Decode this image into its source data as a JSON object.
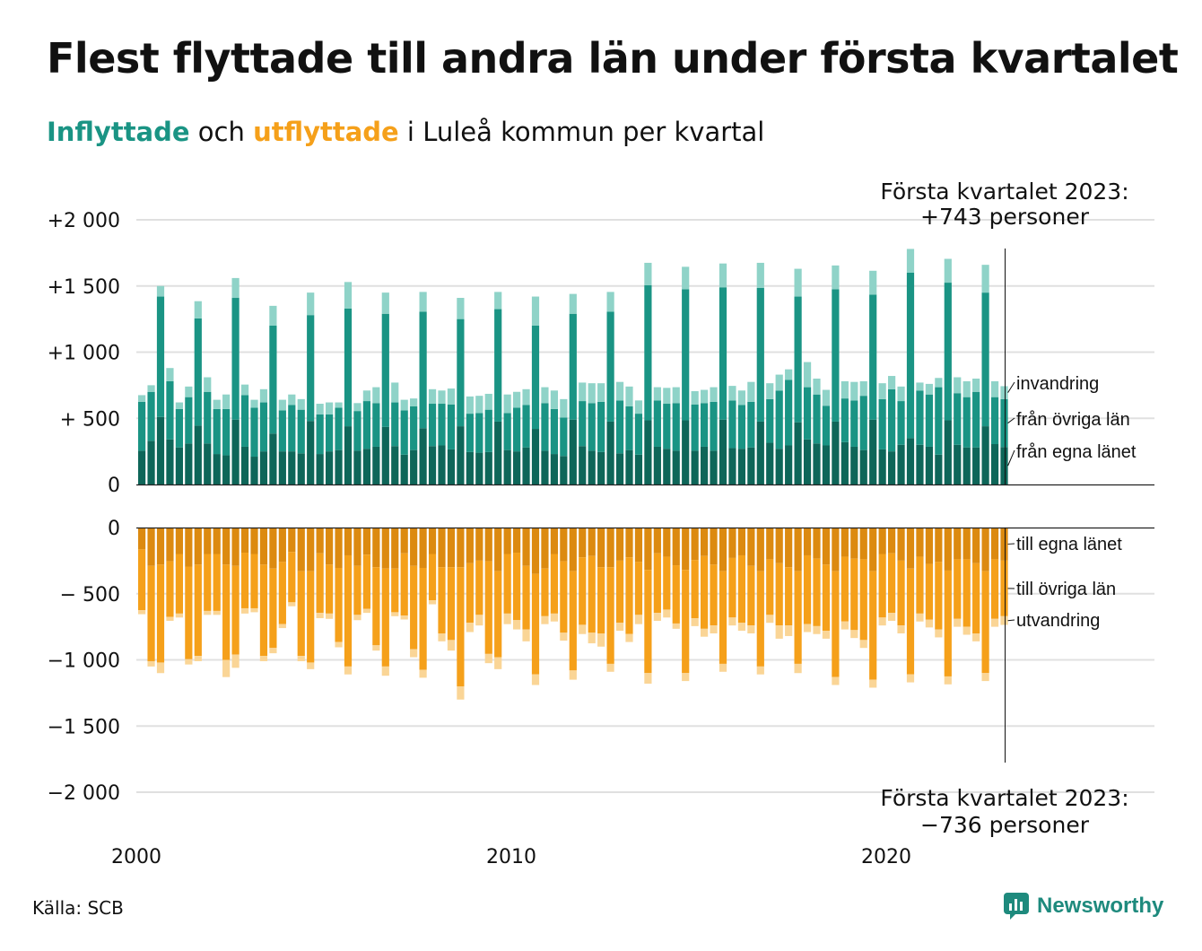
{
  "title": "Flest flyttade till andra län under första kvartalet",
  "subtitle": {
    "in_word": "Inflyttade",
    "mid1": " och ",
    "out_word": "utflyttade",
    "rest": " i Luleå kommun per kvartal"
  },
  "annotations": {
    "top_line1": "Första kvartalet 2023:",
    "top_line2": "+743 personer",
    "bottom_line1": "Första kvartalet 2023:",
    "bottom_line2": "−736 personer"
  },
  "source": "Källa: SCB",
  "brand": "Newsworthy",
  "colors": {
    "in_own": "#0e6659",
    "in_other": "#1a9484",
    "in_imm": "#8fd3c8",
    "out_own": "#dc8a10",
    "out_other": "#f5a01a",
    "out_emig": "#fad596",
    "grid": "#e0e0e0",
    "axis": "#222222"
  },
  "chart_data": {
    "type": "bar",
    "stacked": true,
    "x_start": 2000,
    "x_ticks": [
      2000,
      2010,
      2020
    ],
    "x_tick_labels": [
      "2000",
      "2010",
      "2020"
    ],
    "top_panel": {
      "ylim": [
        0,
        2000
      ],
      "y_ticks": [
        0,
        500,
        1000,
        1500,
        2000
      ],
      "y_tick_labels": [
        "0",
        "+  500",
        "+1 000",
        "+1 500",
        "+2 000"
      ],
      "series": [
        {
          "name": "från egna länet",
          "values": [
            255,
            330,
            510,
            340,
            280,
            310,
            445,
            310,
            230,
            220,
            490,
            285,
            210,
            250,
            385,
            250,
            250,
            235,
            480,
            230,
            250,
            260,
            440,
            255,
            270,
            285,
            435,
            290,
            225,
            260,
            425,
            290,
            295,
            265,
            440,
            245,
            240,
            245,
            475,
            260,
            250,
            280,
            420,
            255,
            230,
            215,
            490,
            290,
            255,
            245,
            475,
            235,
            260,
            225,
            485,
            285,
            270,
            255,
            485,
            255,
            285,
            255,
            490,
            275,
            270,
            280,
            475,
            315,
            270,
            295,
            470,
            340,
            310,
            295,
            475,
            320,
            285,
            260,
            490,
            265,
            250,
            300,
            350,
            300,
            285,
            225,
            485,
            300,
            280,
            280,
            440,
            305,
            283
          ]
        },
        {
          "name": "från övriga län",
          "values": [
            370,
            370,
            910,
            440,
            290,
            350,
            810,
            390,
            340,
            350,
            920,
            390,
            370,
            370,
            815,
            310,
            350,
            330,
            800,
            300,
            280,
            320,
            890,
            300,
            360,
            330,
            855,
            330,
            335,
            330,
            880,
            320,
            315,
            340,
            810,
            290,
            300,
            320,
            850,
            280,
            330,
            320,
            780,
            360,
            340,
            290,
            800,
            340,
            360,
            380,
            830,
            400,
            330,
            310,
            1020,
            350,
            340,
            360,
            990,
            350,
            330,
            370,
            1000,
            360,
            330,
            345,
            1010,
            330,
            440,
            495,
            950,
            395,
            370,
            300,
            1000,
            330,
            350,
            410,
            945,
            380,
            470,
            330,
            1250,
            410,
            395,
            510,
            1040,
            390,
            380,
            420,
            1010,
            355,
            362
          ]
        },
        {
          "name": "invandring",
          "values": [
            50,
            50,
            80,
            100,
            50,
            80,
            130,
            110,
            70,
            110,
            150,
            80,
            60,
            100,
            150,
            80,
            80,
            80,
            170,
            80,
            90,
            40,
            200,
            60,
            80,
            120,
            160,
            150,
            80,
            60,
            150,
            110,
            100,
            120,
            160,
            130,
            130,
            120,
            130,
            140,
            120,
            120,
            220,
            120,
            140,
            140,
            150,
            140,
            150,
            140,
            150,
            140,
            150,
            100,
            170,
            100,
            120,
            120,
            170,
            100,
            100,
            110,
            180,
            110,
            110,
            150,
            190,
            120,
            120,
            80,
            210,
            190,
            120,
            120,
            180,
            130,
            140,
            110,
            180,
            120,
            100,
            110,
            180,
            60,
            80,
            70,
            180,
            120,
            120,
            100,
            210,
            120,
            98
          ]
        }
      ]
    },
    "bottom_panel": {
      "ylim": [
        -2000,
        0
      ],
      "y_ticks": [
        0,
        -500,
        -1000,
        -1500,
        -2000
      ],
      "y_tick_labels": [
        "0",
        "−  500",
        "−1 000",
        "−1 500",
        "−2 000"
      ],
      "series": [
        {
          "name": "till egna länet",
          "values": [
            -165,
            -290,
            -280,
            -255,
            -200,
            -295,
            -280,
            -200,
            -200,
            -280,
            -290,
            -190,
            -200,
            -280,
            -310,
            -260,
            -185,
            -330,
            -330,
            -195,
            -280,
            -305,
            -210,
            -290,
            -205,
            -300,
            -310,
            -310,
            -195,
            -290,
            -305,
            -200,
            -300,
            -300,
            -300,
            -270,
            -250,
            -255,
            -330,
            -200,
            -190,
            -290,
            -350,
            -310,
            -200,
            -255,
            -330,
            -225,
            -215,
            -300,
            -300,
            -250,
            -225,
            -260,
            -320,
            -195,
            -220,
            -285,
            -320,
            -245,
            -215,
            -280,
            -330,
            -230,
            -210,
            -290,
            -330,
            -240,
            -270,
            -300,
            -330,
            -210,
            -235,
            -280,
            -330,
            -220,
            -235,
            -240,
            -330,
            -200,
            -195,
            -250,
            -310,
            -220,
            -275,
            -260,
            -325,
            -240,
            -240,
            -270,
            -330,
            -240,
            -250
          ]
        },
        {
          "name": "till övriga län",
          "values": [
            -460,
            -720,
            -740,
            -420,
            -450,
            -700,
            -690,
            -430,
            -430,
            -720,
            -670,
            -420,
            -410,
            -690,
            -600,
            -470,
            -380,
            -640,
            -690,
            -450,
            -370,
            -560,
            -840,
            -370,
            -410,
            -590,
            -740,
            -330,
            -470,
            -630,
            -770,
            -350,
            -500,
            -550,
            -900,
            -450,
            -410,
            -700,
            -650,
            -450,
            -510,
            -480,
            -760,
            -360,
            -450,
            -540,
            -750,
            -510,
            -580,
            -500,
            -730,
            -470,
            -580,
            -400,
            -780,
            -450,
            -400,
            -440,
            -780,
            -440,
            -550,
            -460,
            -700,
            -450,
            -510,
            -450,
            -720,
            -420,
            -470,
            -440,
            -700,
            -520,
            -510,
            -500,
            -800,
            -490,
            -540,
            -610,
            -820,
            -480,
            -450,
            -490,
            -800,
            -430,
            -420,
            -510,
            -800,
            -450,
            -510,
            -530,
            -770,
            -450,
            -420
          ]
        },
        {
          "name": "utvandring",
          "values": [
            -30,
            -40,
            -80,
            -30,
            -30,
            -40,
            -40,
            -30,
            -30,
            -130,
            -100,
            -40,
            -30,
            -40,
            -40,
            -30,
            -30,
            -40,
            -50,
            -40,
            -40,
            -40,
            -60,
            -40,
            -30,
            -40,
            -70,
            -30,
            -30,
            -60,
            -60,
            -30,
            -60,
            -80,
            -100,
            -70,
            -80,
            -70,
            -90,
            -80,
            -70,
            -90,
            -80,
            -60,
            -60,
            -60,
            -70,
            -70,
            -80,
            -100,
            -60,
            -60,
            -60,
            -70,
            -80,
            -60,
            -60,
            -40,
            -60,
            -60,
            -60,
            -60,
            -60,
            -60,
            -60,
            -60,
            -60,
            -60,
            -100,
            -80,
            -70,
            -60,
            -60,
            -60,
            -60,
            -60,
            -60,
            -60,
            -60,
            -60,
            -60,
            -60,
            -60,
            -60,
            -60,
            -60,
            -60,
            -60,
            -60,
            -60,
            -60,
            -60,
            -66
          ]
        }
      ]
    },
    "legend_top": [
      "invandring",
      "från övriga län",
      "från egna länet"
    ],
    "legend_bottom": [
      "till egna länet",
      "till övriga län",
      "utvandring"
    ]
  }
}
